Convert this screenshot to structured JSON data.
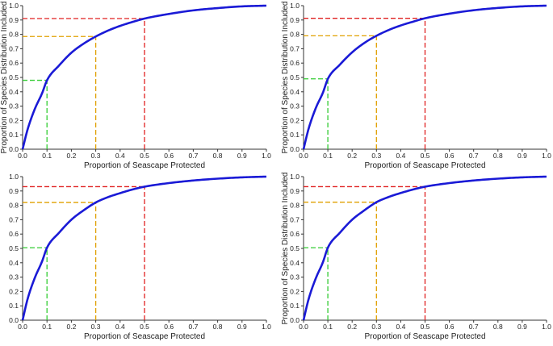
{
  "chart_data": [
    {
      "type": "line",
      "xlabel": "Proportion of Seascape Protected",
      "ylabel": "Proportion of Species Distribution Included",
      "xlim": [
        0,
        1
      ],
      "ylim": [
        0,
        1
      ],
      "ticks": [
        "0.0",
        "0.1",
        "0.2",
        "0.3",
        "0.4",
        "0.5",
        "0.6",
        "0.7",
        "0.8",
        "0.9",
        "1.0"
      ],
      "grid": false,
      "curve_color": "#1a1ad6",
      "series": [
        {
          "x": [
            0,
            0.02,
            0.05,
            0.08,
            0.1,
            0.15,
            0.2,
            0.25,
            0.3,
            0.35,
            0.4,
            0.45,
            0.5,
            0.6,
            0.7,
            0.8,
            0.9,
            1.0
          ],
          "y": [
            0,
            0.135,
            0.28,
            0.39,
            0.48,
            0.584,
            0.672,
            0.735,
            0.785,
            0.826,
            0.859,
            0.886,
            0.91,
            0.942,
            0.967,
            0.983,
            0.995,
            1.0
          ]
        }
      ],
      "reference_lines": [
        {
          "x": 0.1,
          "y": 0.48,
          "color": "#33cc33"
        },
        {
          "x": 0.3,
          "y": 0.785,
          "color": "#e0a000"
        },
        {
          "x": 0.5,
          "y": 0.91,
          "color": "#e02020"
        }
      ]
    },
    {
      "type": "line",
      "xlabel": "Proportion of Seascape Protected",
      "ylabel": "Proportion of Species Distribution Included",
      "xlim": [
        0,
        1
      ],
      "ylim": [
        0,
        1
      ],
      "ticks": [
        "0.0",
        "0.1",
        "0.2",
        "0.3",
        "0.4",
        "0.5",
        "0.6",
        "0.7",
        "0.8",
        "0.9",
        "1.0"
      ],
      "grid": false,
      "curve_color": "#1a1ad6",
      "series": [
        {
          "x": [
            0,
            0.02,
            0.05,
            0.08,
            0.1,
            0.15,
            0.2,
            0.25,
            0.3,
            0.35,
            0.4,
            0.45,
            0.5,
            0.6,
            0.7,
            0.8,
            0.9,
            1.0
          ],
          "y": [
            0,
            0.138,
            0.285,
            0.395,
            0.49,
            0.59,
            0.675,
            0.74,
            0.79,
            0.83,
            0.862,
            0.888,
            0.912,
            0.944,
            0.968,
            0.984,
            0.995,
            1.0
          ]
        }
      ],
      "reference_lines": [
        {
          "x": 0.1,
          "y": 0.49,
          "color": "#33cc33"
        },
        {
          "x": 0.3,
          "y": 0.79,
          "color": "#e0a000"
        },
        {
          "x": 0.5,
          "y": 0.912,
          "color": "#e02020"
        }
      ]
    },
    {
      "type": "line",
      "xlabel": "Proportion of Seascape Protected",
      "ylabel": "",
      "xlim": [
        0,
        1
      ],
      "ylim": [
        0,
        1
      ],
      "ticks": [
        "0.0",
        "0.1",
        "0.2",
        "0.3",
        "0.4",
        "0.5",
        "0.6",
        "0.7",
        "0.8",
        "0.9",
        "1.0"
      ],
      "grid": false,
      "curve_color": "#1a1ad6",
      "series": [
        {
          "x": [
            0,
            0.02,
            0.05,
            0.08,
            0.1,
            0.15,
            0.2,
            0.25,
            0.3,
            0.35,
            0.4,
            0.45,
            0.5,
            0.6,
            0.7,
            0.8,
            0.9,
            1.0
          ],
          "y": [
            0,
            0.145,
            0.295,
            0.41,
            0.505,
            0.61,
            0.7,
            0.765,
            0.82,
            0.857,
            0.885,
            0.91,
            0.93,
            0.955,
            0.973,
            0.986,
            0.995,
            1.0
          ]
        }
      ],
      "reference_lines": [
        {
          "x": 0.1,
          "y": 0.505,
          "color": "#33cc33"
        },
        {
          "x": 0.3,
          "y": 0.82,
          "color": "#e0a000"
        },
        {
          "x": 0.5,
          "y": 0.93,
          "color": "#e02020"
        }
      ]
    },
    {
      "type": "line",
      "xlabel": "Proportion of Seascape Protected",
      "ylabel": "Proportion of Species Distribution Included",
      "xlim": [
        0,
        1
      ],
      "ylim": [
        0,
        1
      ],
      "ticks": [
        "0.0",
        "0.1",
        "0.2",
        "0.3",
        "0.4",
        "0.5",
        "0.6",
        "0.7",
        "0.8",
        "0.9",
        "1.0"
      ],
      "grid": false,
      "curve_color": "#1a1ad6",
      "series": [
        {
          "x": [
            0,
            0.02,
            0.05,
            0.08,
            0.1,
            0.15,
            0.2,
            0.25,
            0.3,
            0.35,
            0.4,
            0.45,
            0.5,
            0.6,
            0.7,
            0.8,
            0.9,
            1.0
          ],
          "y": [
            0,
            0.142,
            0.29,
            0.405,
            0.505,
            0.61,
            0.7,
            0.765,
            0.822,
            0.858,
            0.886,
            0.91,
            0.93,
            0.955,
            0.973,
            0.986,
            0.995,
            1.0
          ]
        }
      ],
      "reference_lines": [
        {
          "x": 0.1,
          "y": 0.505,
          "color": "#33cc33"
        },
        {
          "x": 0.3,
          "y": 0.822,
          "color": "#e0a000"
        },
        {
          "x": 0.5,
          "y": 0.93,
          "color": "#e02020"
        }
      ]
    }
  ]
}
